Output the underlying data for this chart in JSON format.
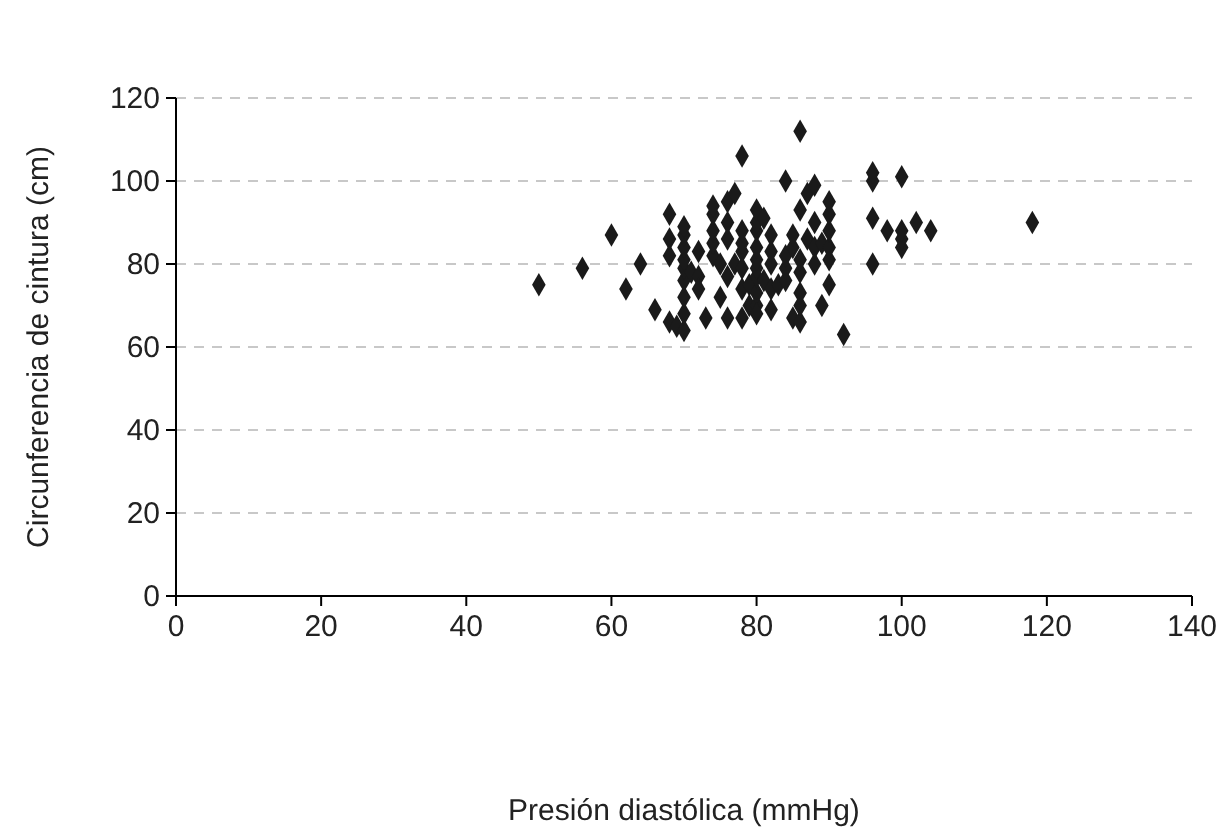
{
  "chart_data": {
    "type": "scatter",
    "xlabel": "Presión diastólica (mmHg)",
    "ylabel": "Circunferencia de cintura (cm)",
    "xlim": [
      0,
      140
    ],
    "ylim": [
      0,
      120
    ],
    "xticks": [
      0,
      20,
      40,
      60,
      80,
      100,
      120,
      140
    ],
    "yticks": [
      0,
      20,
      40,
      60,
      80,
      100,
      120
    ],
    "grid": "y",
    "marker": "diamond",
    "series": [
      {
        "color": "#1a1a1a",
        "x": [
          50,
          56,
          60,
          62,
          64,
          66,
          68,
          68,
          68,
          68,
          69,
          70,
          70,
          70,
          70,
          70,
          70,
          70,
          70,
          70,
          71,
          72,
          72,
          72,
          73,
          74,
          74,
          74,
          74,
          74,
          75,
          75,
          76,
          76,
          76,
          76,
          76,
          77,
          77,
          78,
          78,
          78,
          78,
          78,
          78,
          78,
          79,
          79,
          80,
          80,
          80,
          80,
          80,
          80,
          80,
          80,
          80,
          80,
          81,
          81,
          82,
          82,
          82,
          82,
          82,
          83,
          84,
          84,
          84,
          84,
          85,
          85,
          85,
          86,
          86,
          86,
          86,
          86,
          86,
          86,
          87,
          87,
          88,
          88,
          88,
          88,
          89,
          89,
          90,
          90,
          90,
          90,
          90,
          90,
          92,
          96,
          96,
          96,
          96,
          98,
          100,
          100,
          100,
          100,
          102,
          104,
          118
        ],
        "values": [
          75,
          79,
          87,
          74,
          80,
          69,
          66,
          92,
          86,
          82,
          65,
          64,
          68,
          72,
          76,
          79,
          81,
          84,
          87,
          89,
          78,
          77,
          74,
          83,
          67,
          82,
          85,
          88,
          92,
          94,
          80,
          72,
          86,
          90,
          95,
          67,
          77,
          97,
          80,
          83,
          85,
          74,
          67,
          106,
          79,
          88,
          75,
          70,
          70,
          73,
          77,
          79,
          81,
          84,
          88,
          90,
          93,
          68,
          91,
          76,
          69,
          80,
          83,
          87,
          74,
          75,
          76,
          79,
          82,
          100,
          67,
          84,
          87,
          66,
          70,
          73,
          78,
          81,
          93,
          112,
          86,
          97,
          80,
          84,
          90,
          99,
          85,
          70,
          75,
          81,
          84,
          88,
          92,
          95,
          63,
          80,
          91,
          100,
          102,
          88,
          84,
          86,
          101,
          88,
          90,
          88,
          90
        ]
      }
    ]
  }
}
